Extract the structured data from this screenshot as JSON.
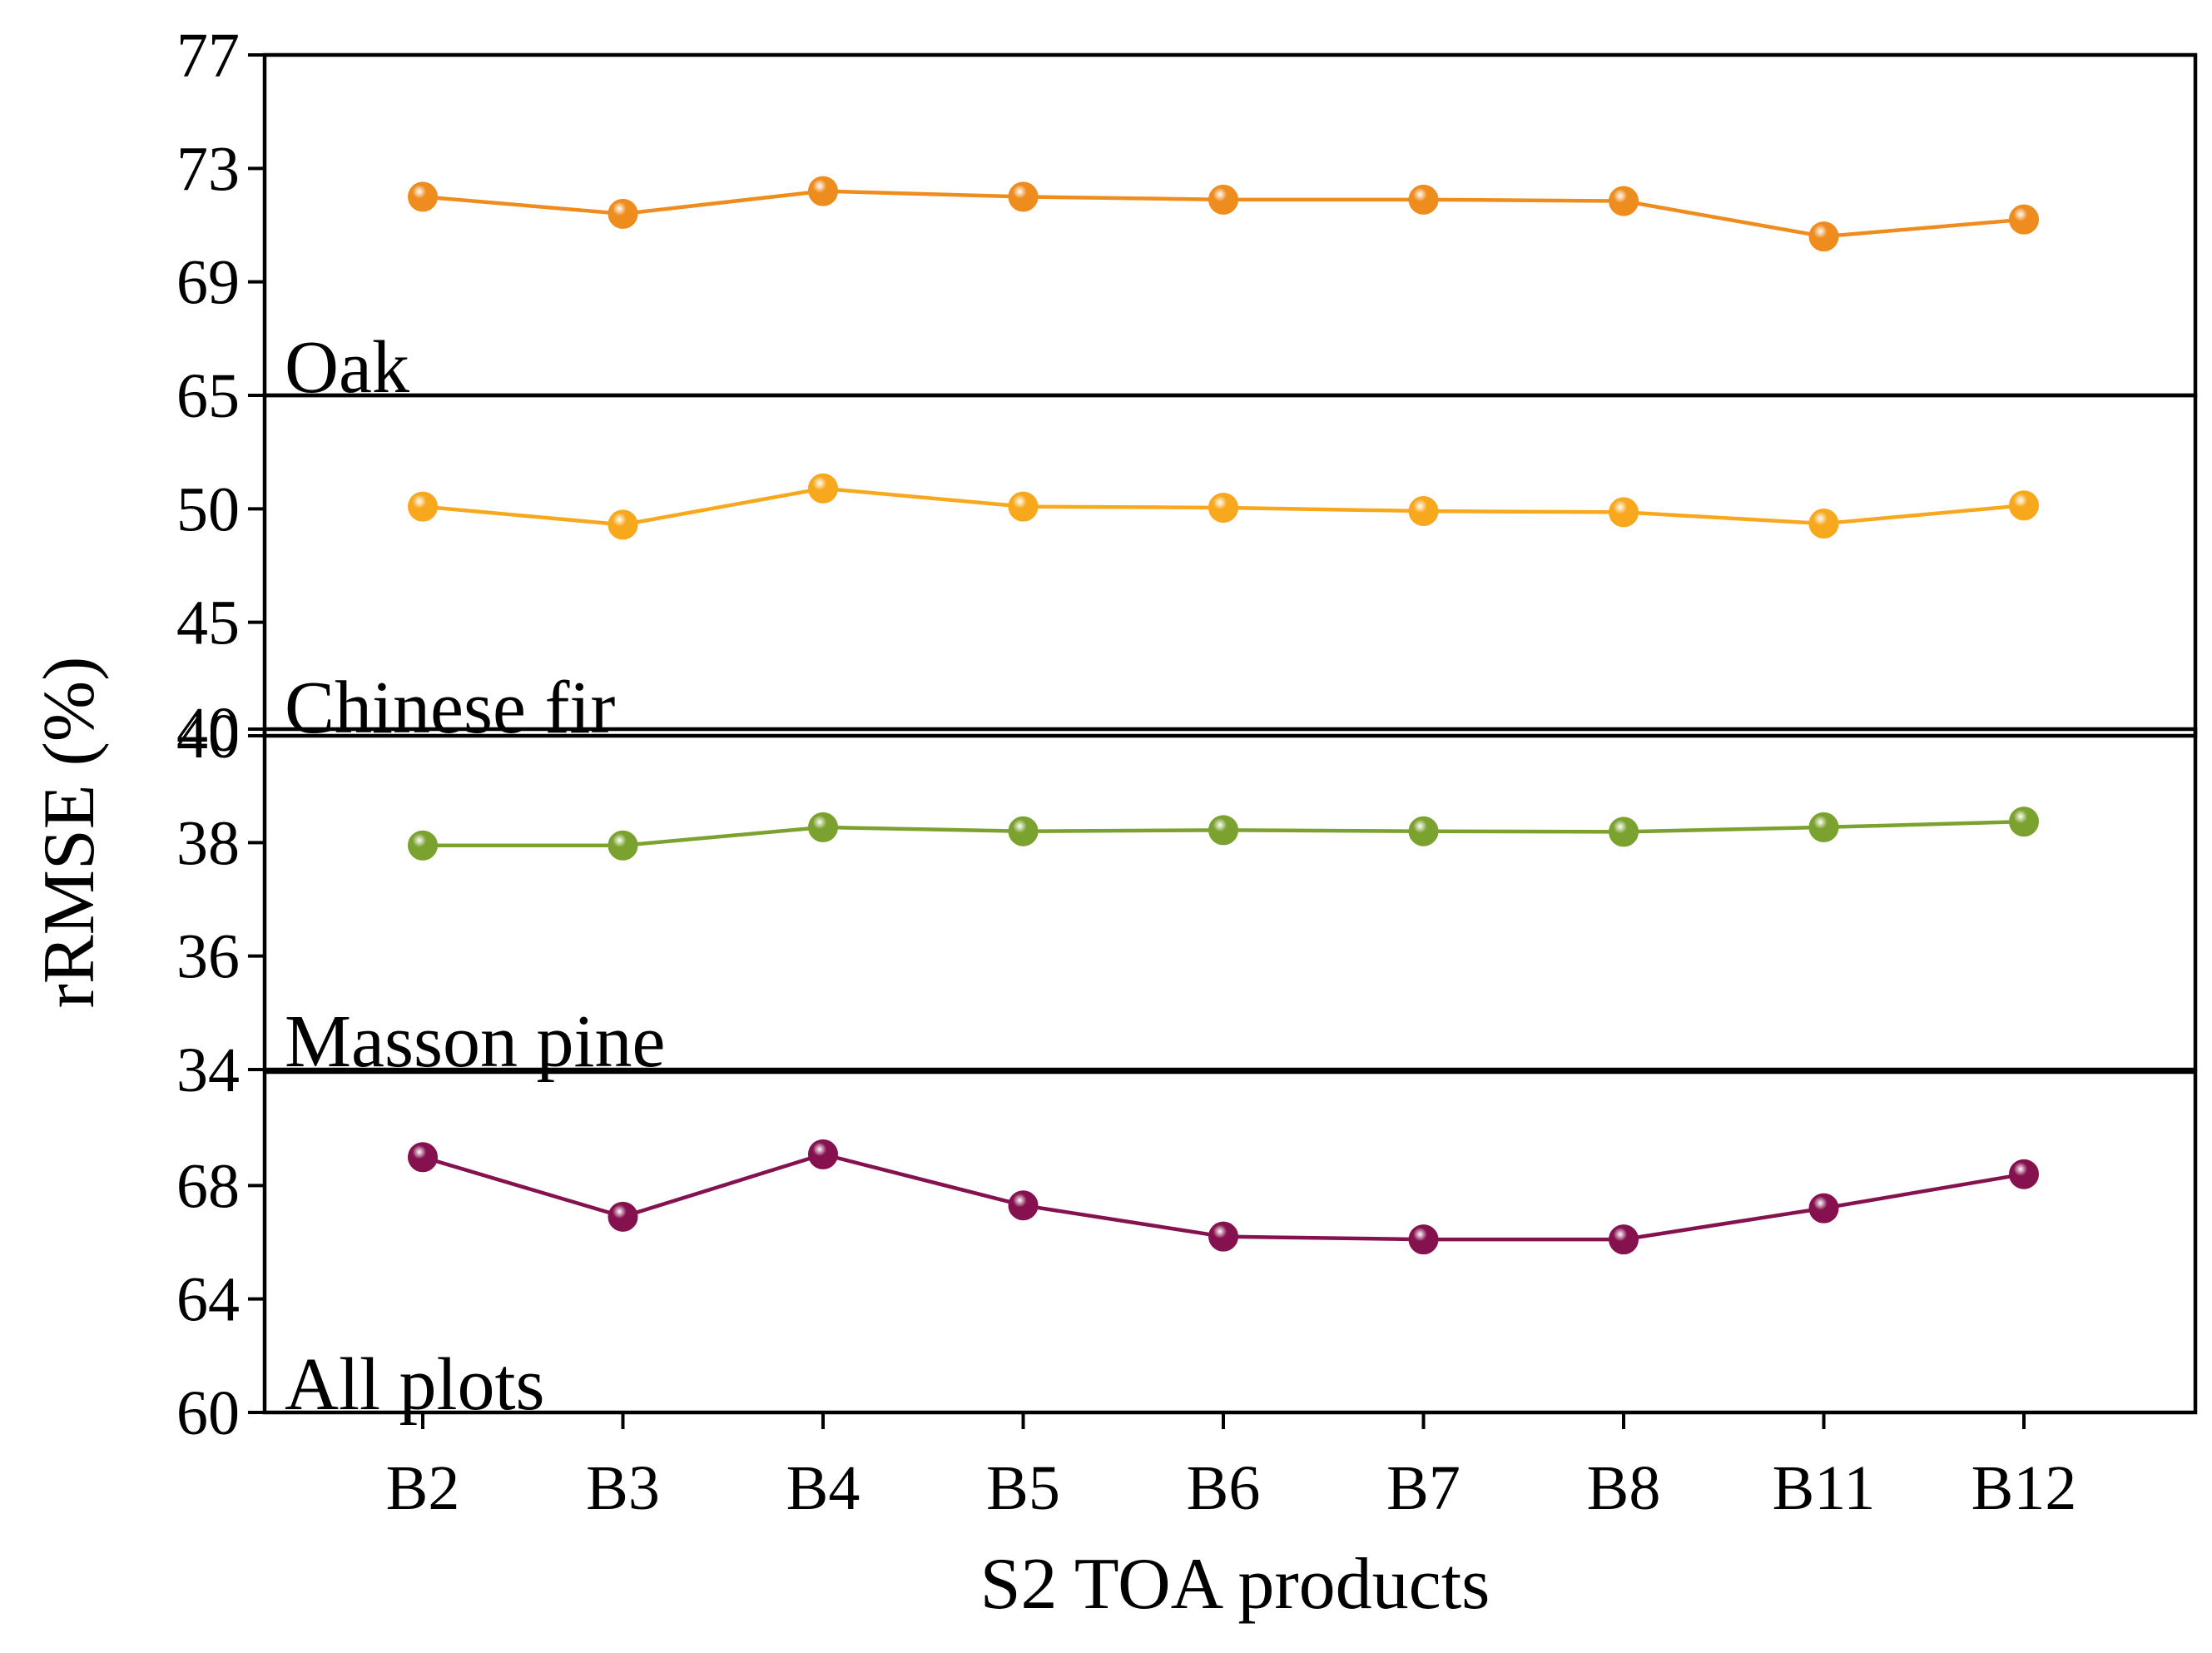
{
  "chart_data": {
    "type": "line",
    "xlabel": "S2 TOA products",
    "ylabel": "rRMSE (%)",
    "categories": [
      "B2",
      "B3",
      "B4",
      "B5",
      "B6",
      "B7",
      "B8",
      "B11",
      "B12"
    ],
    "panels": [
      {
        "name": "Oak",
        "color": "#ee8c1e",
        "ylim": [
          65,
          77
        ],
        "yticks": [
          "65",
          "69",
          "73",
          "77"
        ],
        "values": [
          72.0,
          71.4,
          72.2,
          72.0,
          71.9,
          71.9,
          71.85,
          70.6,
          71.2
        ]
      },
      {
        "name": "Chinese fir",
        "color": "#f8a81c",
        "ylim": [
          40,
          55
        ],
        "yticks": [
          "40",
          "45",
          "50"
        ],
        "values": [
          50.1,
          49.3,
          50.9,
          50.1,
          50.05,
          49.9,
          49.85,
          49.35,
          50.15
        ]
      },
      {
        "name": "Masson pine",
        "color": "#7ba12e",
        "ylim": [
          34,
          40
        ],
        "yticks": [
          "34",
          "36",
          "38",
          "40"
        ],
        "values": [
          37.95,
          37.95,
          38.27,
          38.2,
          38.22,
          38.2,
          38.19,
          38.27,
          38.37
        ]
      },
      {
        "name": "All plots",
        "color": "#85114f",
        "ylim": [
          60,
          72
        ],
        "yticks": [
          "60",
          "64",
          "68"
        ],
        "values": [
          69.0,
          66.9,
          69.1,
          67.3,
          66.2,
          66.1,
          66.1,
          67.2,
          68.4
        ]
      }
    ]
  }
}
